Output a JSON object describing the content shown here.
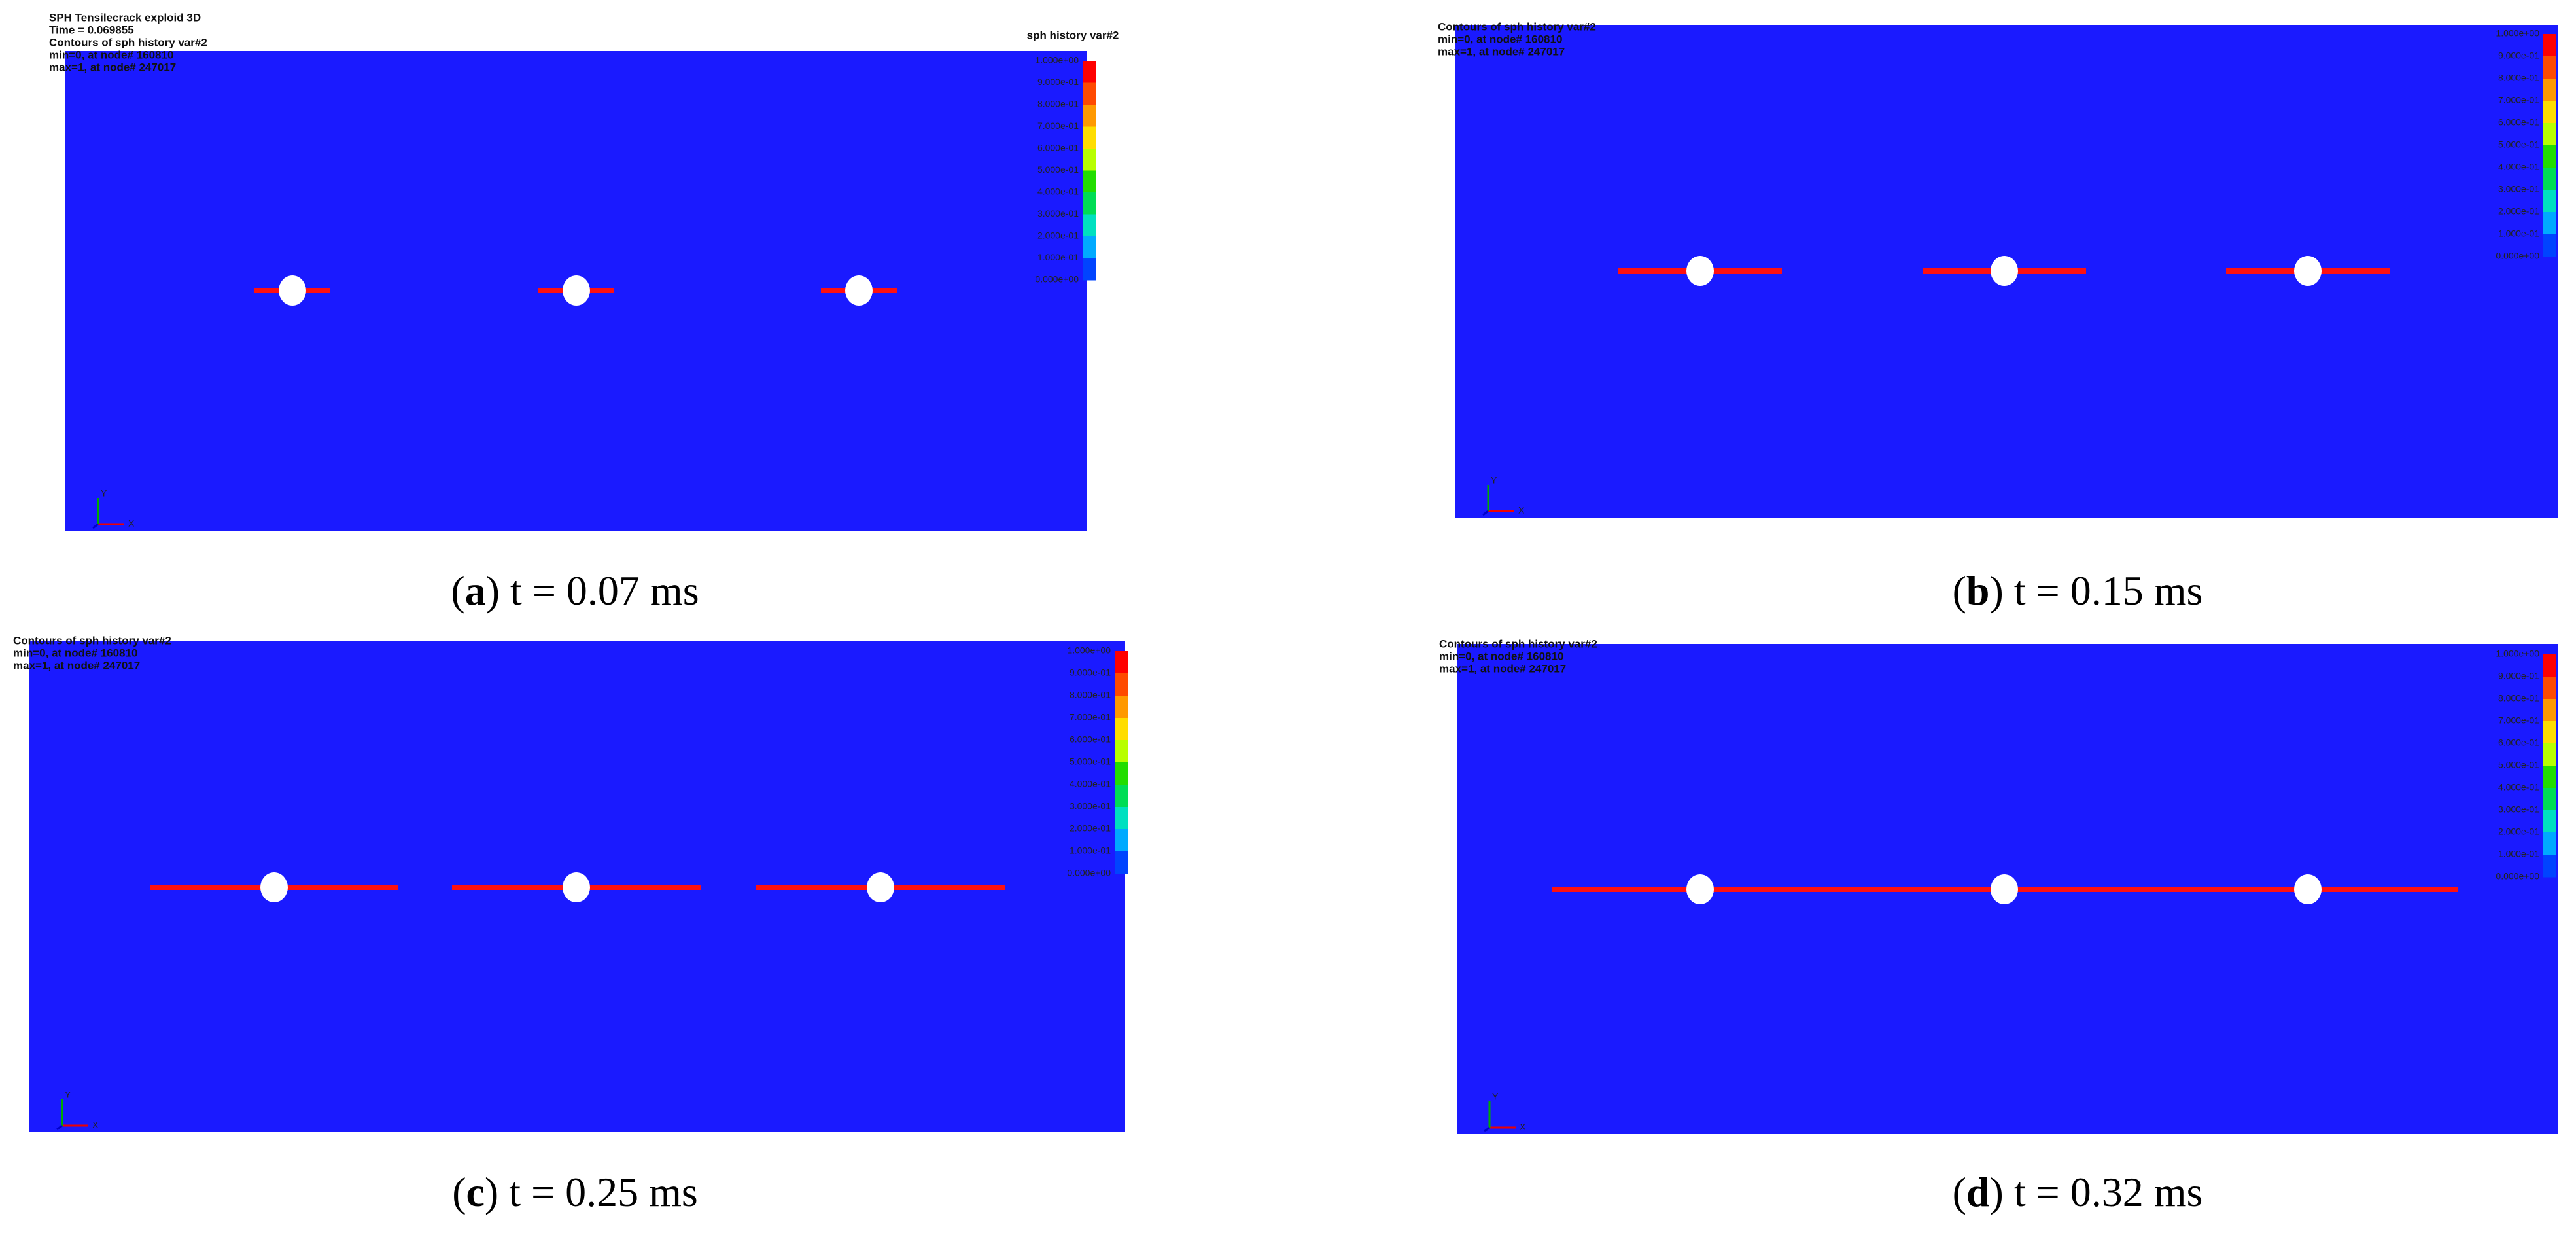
{
  "panels": [
    {
      "header": [
        "SPH Tensilecrack exploid 3D",
        "Time =   0.069855",
        "Contours of sph history var#2",
        "min=0, at node# 160810",
        "max=1, at node# 247017"
      ],
      "legend_title": "sph history var#2",
      "caption": {
        "open": "(",
        "letter": "a",
        "rest": ") t = 0.07 ms"
      }
    },
    {
      "header": [
        "Contours of sph history var#2",
        "min=0, at node# 160810",
        "max=1, at node# 247017"
      ],
      "caption": {
        "open": "(",
        "letter": "b",
        "rest": ") t = 0.15 ms"
      }
    },
    {
      "header": [
        "Contours of sph history var#2",
        "min=0, at node# 160810",
        "max=1, at node# 247017"
      ],
      "caption": {
        "open": "(",
        "letter": "c",
        "rest": ") t = 0.25 ms"
      }
    },
    {
      "header": [
        "Contours of sph history var#2",
        "min=0, at node# 160810",
        "max=1, at node# 247017"
      ],
      "caption": {
        "open": "(",
        "letter": "d",
        "rest": ") t = 0.32 ms"
      }
    }
  ],
  "legend_labels": [
    "1.000e+00",
    "9.000e-01",
    "8.000e-01",
    "7.000e-01",
    "6.000e-01",
    "5.000e-01",
    "4.000e-01",
    "3.000e-01",
    "2.000e-01",
    "1.000e-01",
    "0.000e+00"
  ],
  "axes": {
    "x": "X",
    "y": "Y"
  }
}
